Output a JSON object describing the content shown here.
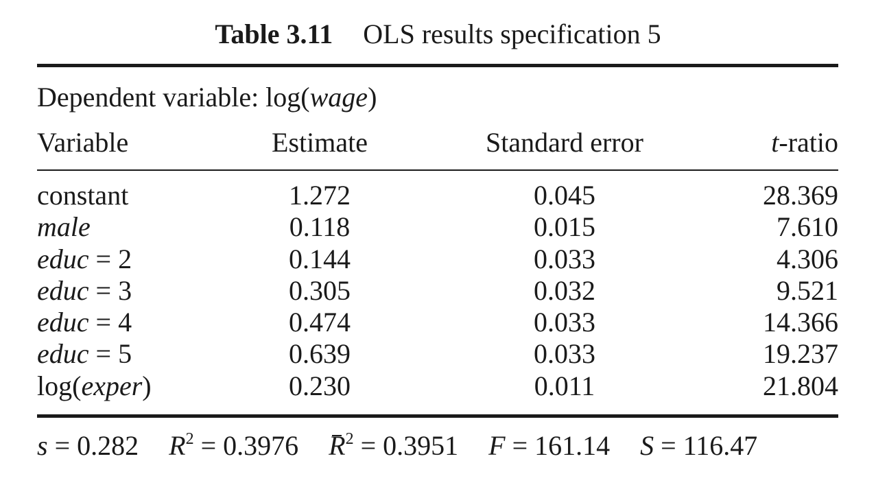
{
  "title": {
    "number": "Table 3.11",
    "caption": "OLS results specification 5"
  },
  "dependent": {
    "prefix": "Dependent variable: log(",
    "var": "wage",
    "suffix": ")"
  },
  "columns": {
    "variable": "Variable",
    "estimate": "Estimate",
    "std_error": "Standard error",
    "t_prefix": "t",
    "t_suffix": "-ratio"
  },
  "rows": [
    {
      "pre": "",
      "name": "",
      "post": "constant",
      "estimate": "1.272",
      "se": "0.045",
      "t": "28.369"
    },
    {
      "pre": "",
      "name": "male",
      "post": "",
      "estimate": "0.118",
      "se": "0.015",
      "t": "7.610"
    },
    {
      "pre": "",
      "name": "educ",
      "post": " = 2",
      "estimate": "0.144",
      "se": "0.033",
      "t": "4.306"
    },
    {
      "pre": "",
      "name": "educ",
      "post": " = 3",
      "estimate": "0.305",
      "se": "0.032",
      "t": "9.521"
    },
    {
      "pre": "",
      "name": "educ",
      "post": " = 4",
      "estimate": "0.474",
      "se": "0.033",
      "t": "14.366"
    },
    {
      "pre": "",
      "name": "educ",
      "post": " = 5",
      "estimate": "0.639",
      "se": "0.033",
      "t": "19.237"
    },
    {
      "pre": "log(",
      "name": "exper",
      "post": ")",
      "estimate": "0.230",
      "se": "0.011",
      "t": "21.804"
    }
  ],
  "stats": {
    "s": {
      "sym": "s",
      "value": " = 0.282"
    },
    "r2": {
      "sym": "R",
      "sup": "2",
      "value": " = 0.3976"
    },
    "r2_adj": {
      "sym": "R",
      "sup": "2",
      "value": " = 0.3951"
    },
    "f": {
      "sym": "F",
      "value": " = 161.14"
    },
    "ssr": {
      "sym": "S",
      "value": " = 116.47"
    }
  }
}
